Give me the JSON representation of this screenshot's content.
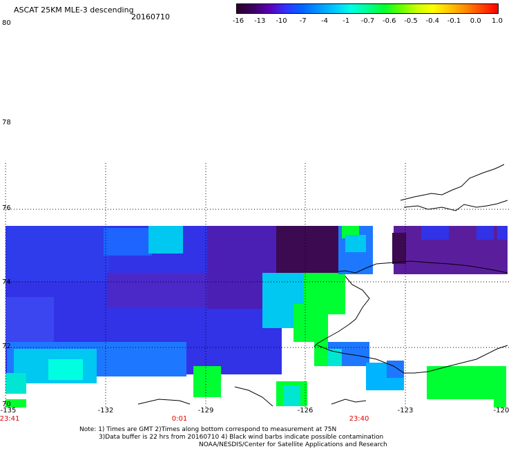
{
  "title": "ASCAT 25KM MLE-3 descending",
  "date": "20160710",
  "colorbar": {
    "labels": [
      "-16",
      "-13",
      "-10",
      "-7",
      "-4",
      "-1",
      "-0.7",
      "-0.6",
      "-0.5",
      "-0.4",
      "-0.1",
      "0.0",
      "1.0"
    ]
  },
  "lat_labels": [
    "80",
    "78",
    "76",
    "74",
    "72",
    "70"
  ],
  "lon_labels": [
    "-135",
    "-132",
    "-129",
    "-126",
    "-123",
    "-120"
  ],
  "time_labels": [
    "23:41",
    "0:01",
    "23:40"
  ],
  "notes": [
    "Note: 1) Times are GMT 2)Times along bottom correspond to measurement at 75N",
    "3)Data buffer is 22 hrs from 20160710 4) Black wind barbs indicate possible contamination",
    "NOAA/NESDIS/Center for Satellite Applications and Research"
  ],
  "colors": {
    "deep_purple": "#3c0a50",
    "purple": "#5a1e9c",
    "blue": "#3232e6",
    "light_blue": "#1e78ff",
    "cyan": "#00c8f0",
    "aqua": "#00ffe0",
    "green": "#00ff32"
  }
}
